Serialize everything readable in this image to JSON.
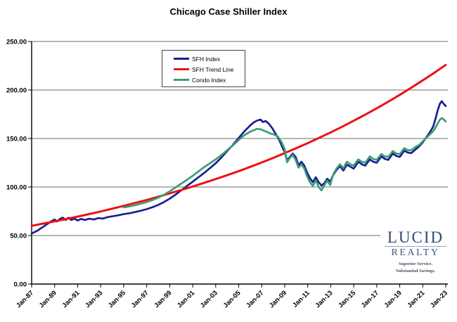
{
  "title": "Chicago Case Shiller Index",
  "axes": {
    "y_ticks": [
      {
        "label": "0.00",
        "value": 0
      },
      {
        "label": "50.00",
        "value": 50
      },
      {
        "label": "100.00",
        "value": 100
      },
      {
        "label": "150.00",
        "value": 150
      },
      {
        "label": "200.00",
        "value": 200
      },
      {
        "label": "250.00",
        "value": 250
      }
    ],
    "x_ticks": [
      {
        "label": "Jan-87",
        "year": 1987
      },
      {
        "label": "Jan-89",
        "year": 1989
      },
      {
        "label": "Jan-91",
        "year": 1991
      },
      {
        "label": "Jan-93",
        "year": 1993
      },
      {
        "label": "Jan-95",
        "year": 1995
      },
      {
        "label": "Jan-97",
        "year": 1997
      },
      {
        "label": "Jan-99",
        "year": 1999
      },
      {
        "label": "Jan-01",
        "year": 2001
      },
      {
        "label": "Jan-03",
        "year": 2003
      },
      {
        "label": "Jan-05",
        "year": 2005
      },
      {
        "label": "Jan-07",
        "year": 2007
      },
      {
        "label": "Jan-09",
        "year": 2009
      },
      {
        "label": "Jan-11",
        "year": 2011
      },
      {
        "label": "Jan-13",
        "year": 2013
      },
      {
        "label": "Jan-15",
        "year": 2015
      },
      {
        "label": "Jan-17",
        "year": 2017
      },
      {
        "label": "Jan-19",
        "year": 2019
      },
      {
        "label": "Jan-21",
        "year": 2021
      },
      {
        "label": "Jan-23",
        "year": 2023
      }
    ],
    "grid_color": "#6e6e6e",
    "axis_color": "#000000"
  },
  "chart_data": {
    "type": "line",
    "title": "Chicago Case Shiller Index",
    "xlabel": "",
    "ylabel": "",
    "x_range": [
      1987,
      2023
    ],
    "ylim": [
      0,
      250
    ],
    "grid": true,
    "legend_position": "top-left-inside",
    "series": [
      {
        "name": "SFH Index",
        "color": "#181f93",
        "points": [
          [
            1987.0,
            52
          ],
          [
            1987.25,
            53.5
          ],
          [
            1987.5,
            55
          ],
          [
            1987.75,
            57
          ],
          [
            1988.0,
            59
          ],
          [
            1988.25,
            61
          ],
          [
            1988.5,
            63
          ],
          [
            1988.75,
            65
          ],
          [
            1989.0,
            66.5
          ],
          [
            1989.2,
            64.5
          ],
          [
            1989.45,
            67
          ],
          [
            1989.7,
            68.5
          ],
          [
            1989.95,
            66
          ],
          [
            1990.2,
            68.3
          ],
          [
            1990.45,
            66
          ],
          [
            1990.7,
            67.5
          ],
          [
            1991.0,
            65.5
          ],
          [
            1991.3,
            67.2
          ],
          [
            1991.6,
            66
          ],
          [
            1992.0,
            67.3
          ],
          [
            1992.4,
            66.5
          ],
          [
            1992.8,
            68
          ],
          [
            1993.2,
            67.5
          ],
          [
            1993.6,
            69
          ],
          [
            1994.0,
            69.8
          ],
          [
            1994.5,
            70.8
          ],
          [
            1995.0,
            72
          ],
          [
            1995.5,
            73
          ],
          [
            1996.0,
            74.2
          ],
          [
            1996.5,
            75.6
          ],
          [
            1997.0,
            77.2
          ],
          [
            1997.5,
            79.2
          ],
          [
            1998.0,
            81.5
          ],
          [
            1998.5,
            84.5
          ],
          [
            1999.0,
            88
          ],
          [
            1999.5,
            92
          ],
          [
            2000.0,
            96.5
          ],
          [
            2000.5,
            101
          ],
          [
            2001.0,
            105.5
          ],
          [
            2001.5,
            110
          ],
          [
            2002.0,
            114.5
          ],
          [
            2002.5,
            119.5
          ],
          [
            2003.0,
            124.5
          ],
          [
            2003.5,
            130.5
          ],
          [
            2004.0,
            137
          ],
          [
            2004.5,
            143.5
          ],
          [
            2005.0,
            150.5
          ],
          [
            2005.5,
            157.5
          ],
          [
            2006.0,
            163.5
          ],
          [
            2006.3,
            166.5
          ],
          [
            2006.6,
            168.5
          ],
          [
            2006.9,
            169.5
          ],
          [
            2007.1,
            167
          ],
          [
            2007.35,
            168
          ],
          [
            2007.6,
            165.5
          ],
          [
            2007.9,
            161
          ],
          [
            2008.2,
            155
          ],
          [
            2008.5,
            149
          ],
          [
            2008.8,
            141
          ],
          [
            2009.0,
            136
          ],
          [
            2009.2,
            127.5
          ],
          [
            2009.45,
            131
          ],
          [
            2009.7,
            134.5
          ],
          [
            2009.95,
            131
          ],
          [
            2010.2,
            122.5
          ],
          [
            2010.45,
            126
          ],
          [
            2010.7,
            122
          ],
          [
            2010.95,
            115
          ],
          [
            2011.2,
            109
          ],
          [
            2011.45,
            105
          ],
          [
            2011.7,
            110
          ],
          [
            2011.95,
            105
          ],
          [
            2012.2,
            101.5
          ],
          [
            2012.45,
            104
          ],
          [
            2012.7,
            108.5
          ],
          [
            2012.95,
            105.5
          ],
          [
            2013.2,
            112
          ],
          [
            2013.5,
            117.5
          ],
          [
            2013.8,
            121.5
          ],
          [
            2014.1,
            117
          ],
          [
            2014.4,
            123
          ],
          [
            2014.7,
            121
          ],
          [
            2015.0,
            119
          ],
          [
            2015.4,
            126
          ],
          [
            2015.7,
            123.5
          ],
          [
            2016.0,
            122
          ],
          [
            2016.4,
            128.5
          ],
          [
            2016.7,
            126
          ],
          [
            2017.0,
            125
          ],
          [
            2017.4,
            131.5
          ],
          [
            2017.7,
            129
          ],
          [
            2018.0,
            128
          ],
          [
            2018.4,
            134.5
          ],
          [
            2018.7,
            132
          ],
          [
            2019.0,
            131
          ],
          [
            2019.4,
            137.5
          ],
          [
            2019.7,
            135.5
          ],
          [
            2020.0,
            135
          ],
          [
            2020.4,
            139
          ],
          [
            2020.7,
            142
          ],
          [
            2021.0,
            146
          ],
          [
            2021.3,
            151
          ],
          [
            2021.6,
            156
          ],
          [
            2021.9,
            162
          ],
          [
            2022.1,
            170
          ],
          [
            2022.3,
            179
          ],
          [
            2022.5,
            186
          ],
          [
            2022.65,
            188.5
          ],
          [
            2022.8,
            186
          ],
          [
            2023.0,
            183.5
          ]
        ]
      },
      {
        "name": "SFH Trend Line",
        "color": "#ee1111",
        "points": [
          [
            1987,
            60
          ],
          [
            1988,
            62.3
          ],
          [
            1989,
            64.6
          ],
          [
            1990,
            67
          ],
          [
            1991,
            69.5
          ],
          [
            1992,
            72.1
          ],
          [
            1993,
            74.8
          ],
          [
            1994,
            77.7
          ],
          [
            1995,
            80.6
          ],
          [
            1996,
            83.6
          ],
          [
            1997,
            86.7
          ],
          [
            1998,
            90
          ],
          [
            1999,
            93.4
          ],
          [
            2000,
            96.9
          ],
          [
            2001,
            100.5
          ],
          [
            2002,
            104.3
          ],
          [
            2003,
            108.2
          ],
          [
            2004,
            112.2
          ],
          [
            2005,
            116.4
          ],
          [
            2006,
            120.8
          ],
          [
            2007,
            125.3
          ],
          [
            2008,
            130
          ],
          [
            2009,
            134.9
          ],
          [
            2010,
            140
          ],
          [
            2011,
            145.2
          ],
          [
            2012,
            150.7
          ],
          [
            2013,
            156.3
          ],
          [
            2014,
            162.2
          ],
          [
            2015,
            168.3
          ],
          [
            2016,
            174.6
          ],
          [
            2017,
            181.1
          ],
          [
            2018,
            187.9
          ],
          [
            2019,
            195
          ],
          [
            2020,
            202.3
          ],
          [
            2021,
            209.9
          ],
          [
            2022,
            217.7
          ],
          [
            2023,
            225.9
          ]
        ]
      },
      {
        "name": "Condo Index",
        "color": "#3c9d74",
        "points": [
          [
            1995.0,
            79
          ],
          [
            1995.5,
            80
          ],
          [
            1996.0,
            81.3
          ],
          [
            1996.5,
            82.8
          ],
          [
            1997.0,
            84.5
          ],
          [
            1997.5,
            86.5
          ],
          [
            1998.0,
            89
          ],
          [
            1998.5,
            92
          ],
          [
            1999.0,
            95.5
          ],
          [
            1999.5,
            99.5
          ],
          [
            2000.0,
            103.5
          ],
          [
            2000.5,
            107.5
          ],
          [
            2001.0,
            111.5
          ],
          [
            2001.5,
            116
          ],
          [
            2002.0,
            120.5
          ],
          [
            2002.5,
            124.5
          ],
          [
            2003.0,
            128.5
          ],
          [
            2003.5,
            133
          ],
          [
            2004.0,
            138
          ],
          [
            2004.5,
            143
          ],
          [
            2005.0,
            148.5
          ],
          [
            2005.5,
            153.5
          ],
          [
            2006.0,
            157
          ],
          [
            2006.3,
            158.5
          ],
          [
            2006.6,
            160
          ],
          [
            2006.9,
            159.5
          ],
          [
            2007.2,
            158
          ],
          [
            2007.5,
            156.5
          ],
          [
            2007.8,
            155
          ],
          [
            2008.1,
            154
          ],
          [
            2008.4,
            152
          ],
          [
            2008.7,
            147
          ],
          [
            2009.0,
            139
          ],
          [
            2009.2,
            125.5
          ],
          [
            2009.45,
            130
          ],
          [
            2009.7,
            133
          ],
          [
            2009.95,
            128
          ],
          [
            2010.2,
            120
          ],
          [
            2010.45,
            123.5
          ],
          [
            2010.7,
            119
          ],
          [
            2010.95,
            111
          ],
          [
            2011.2,
            105
          ],
          [
            2011.45,
            101
          ],
          [
            2011.7,
            107
          ],
          [
            2011.95,
            100
          ],
          [
            2012.2,
            96.5
          ],
          [
            2012.45,
            102
          ],
          [
            2012.7,
            106.5
          ],
          [
            2012.95,
            102
          ],
          [
            2013.2,
            112.5
          ],
          [
            2013.5,
            119
          ],
          [
            2013.8,
            123.5
          ],
          [
            2014.1,
            119.5
          ],
          [
            2014.4,
            126
          ],
          [
            2014.7,
            123.5
          ],
          [
            2015.0,
            122
          ],
          [
            2015.4,
            128.5
          ],
          [
            2015.7,
            126
          ],
          [
            2016.0,
            125
          ],
          [
            2016.4,
            131.5
          ],
          [
            2016.7,
            129
          ],
          [
            2017.0,
            128
          ],
          [
            2017.4,
            134
          ],
          [
            2017.7,
            131.5
          ],
          [
            2018.0,
            131
          ],
          [
            2018.4,
            137
          ],
          [
            2018.7,
            134.5
          ],
          [
            2019.0,
            134
          ],
          [
            2019.4,
            140
          ],
          [
            2019.7,
            138
          ],
          [
            2020.0,
            138
          ],
          [
            2020.4,
            141.5
          ],
          [
            2020.7,
            143.5
          ],
          [
            2021.0,
            147
          ],
          [
            2021.3,
            150.5
          ],
          [
            2021.6,
            154
          ],
          [
            2021.9,
            157.5
          ],
          [
            2022.1,
            161
          ],
          [
            2022.3,
            165.5
          ],
          [
            2022.5,
            169.5
          ],
          [
            2022.65,
            171
          ],
          [
            2022.8,
            170
          ],
          [
            2023.0,
            167.5
          ]
        ]
      }
    ]
  },
  "logo": {
    "name": "LUCID",
    "realty": "REALTY",
    "tagline_line1": "Superior Service.",
    "tagline_line2": "Substantial Savings.",
    "color": "#2e4a74",
    "color_secondary": "#3b567e"
  }
}
